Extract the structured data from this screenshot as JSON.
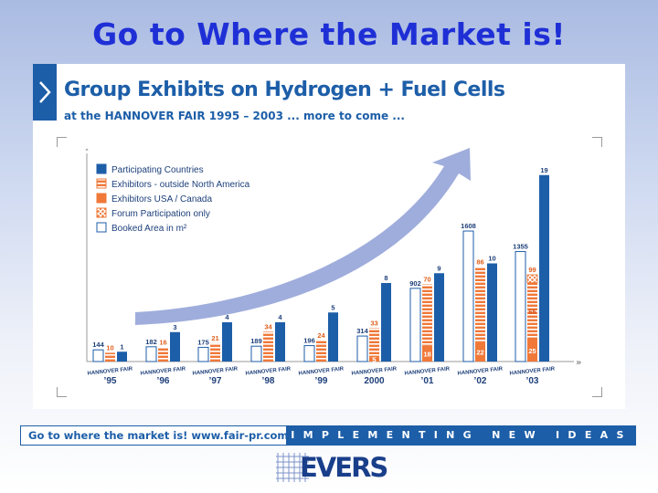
{
  "header": {
    "title": "Go to Where the Market is!"
  },
  "panel": {
    "title": "Group Exhibits on Hydrogen + Fuel Cells",
    "subtitle": "at the HANNOVER FAIR 1995 – 2003 ...  more to come  ...",
    "marker_icon": "chevron-right-icon"
  },
  "footer": {
    "left_text": "Go to where the market is!   www.fair-pr.com",
    "right_text": "IMPLEMENTING NEW IDEAS",
    "logo_text": "EVERS"
  },
  "colors": {
    "title_blue": "#1f2fd6",
    "panel_blue": "#1d5ea8",
    "countries": "#1d5ea8",
    "exhibitors_outside": "#f07838",
    "exhibitors_usa": "#f07838",
    "forum": "#f07838",
    "booked_area": "#ffffff",
    "arrow": "#8e9fd6"
  },
  "chart_data": {
    "type": "bar",
    "legend_position": "top-left",
    "series": [
      {
        "name": "Participating Countries",
        "key": "countries"
      },
      {
        "name": "Exhibitors - outside North America",
        "key": "outside"
      },
      {
        "name": "Exhibitors USA / Canada",
        "key": "usa"
      },
      {
        "name": "Forum Participation only",
        "key": "forum"
      },
      {
        "name": "Booked Area in m²",
        "key": "area"
      }
    ],
    "categories": [
      {
        "fair": "HANNOVER FAIR",
        "year": "’95",
        "area": 144,
        "outside": 10,
        "usa": null,
        "forum": null,
        "countries": 1
      },
      {
        "fair": "HANNOVER FAIR",
        "year": "’96",
        "area": 182,
        "outside": 16,
        "usa": null,
        "forum": null,
        "countries": 3
      },
      {
        "fair": "HANNOVER FAIR",
        "year": "’97",
        "area": 175,
        "outside": 21,
        "usa": null,
        "forum": null,
        "countries": 4
      },
      {
        "fair": "HANNOVER FAIR",
        "year": "’98",
        "area": 189,
        "outside": 34,
        "usa": null,
        "forum": null,
        "countries": 4
      },
      {
        "fair": "HANNOVER FAIR",
        "year": "’99",
        "area": 196,
        "outside": 24,
        "usa": null,
        "forum": null,
        "countries": 5
      },
      {
        "fair": "HANNOVER FAIR",
        "year": "2000",
        "area": 314,
        "outside": 33,
        "usa": 5,
        "forum": null,
        "countries": 8
      },
      {
        "fair": "HANNOVER FAIR",
        "year": "’01",
        "area": 902,
        "outside": 70,
        "usa": 18,
        "forum": null,
        "countries": 9
      },
      {
        "fair": "HANNOVER FAIR",
        "year": "’02",
        "area": 1608,
        "outside": 86,
        "usa": 22,
        "forum": null,
        "countries": 10
      },
      {
        "fair": "HANNOVER FAIR",
        "year": "’03",
        "area": 1355,
        "outside": 65,
        "usa": 25,
        "forum": 99,
        "countries": 19
      }
    ]
  }
}
